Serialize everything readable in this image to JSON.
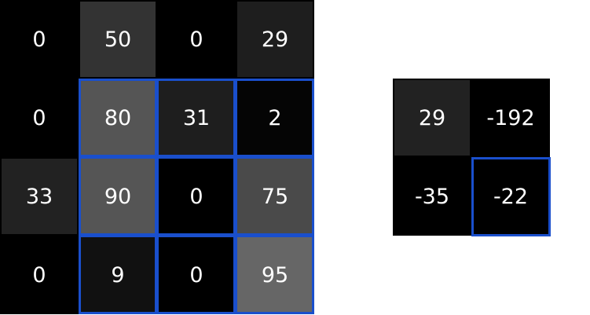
{
  "input_grid": {
    "values": [
      [
        0,
        50,
        0,
        29
      ],
      [
        0,
        80,
        31,
        2
      ],
      [
        33,
        90,
        0,
        75
      ],
      [
        0,
        9,
        0,
        95
      ]
    ],
    "shades": [
      [
        "#000000",
        "#333333",
        "#000000",
        "#1e1e1e"
      ],
      [
        "#000000",
        "#555555",
        "#1e1e1e",
        "#050505"
      ],
      [
        "#222222",
        "#555555",
        "#000000",
        "#4a4a4a"
      ],
      [
        "#000000",
        "#111111",
        "#000000",
        "#666666"
      ]
    ],
    "highlight_rows": [
      1,
      3
    ],
    "highlight_cols": [
      1,
      3
    ]
  },
  "output_grid": {
    "values": [
      [
        29,
        -192
      ],
      [
        -35,
        -22
      ]
    ],
    "shades": [
      [
        "#222222",
        "#000000"
      ],
      [
        "#000000",
        "#000000"
      ]
    ],
    "highlight_cell": [
      1,
      1
    ]
  },
  "colors": {
    "highlight": "#1a4fcc",
    "text": "#ffffff"
  }
}
